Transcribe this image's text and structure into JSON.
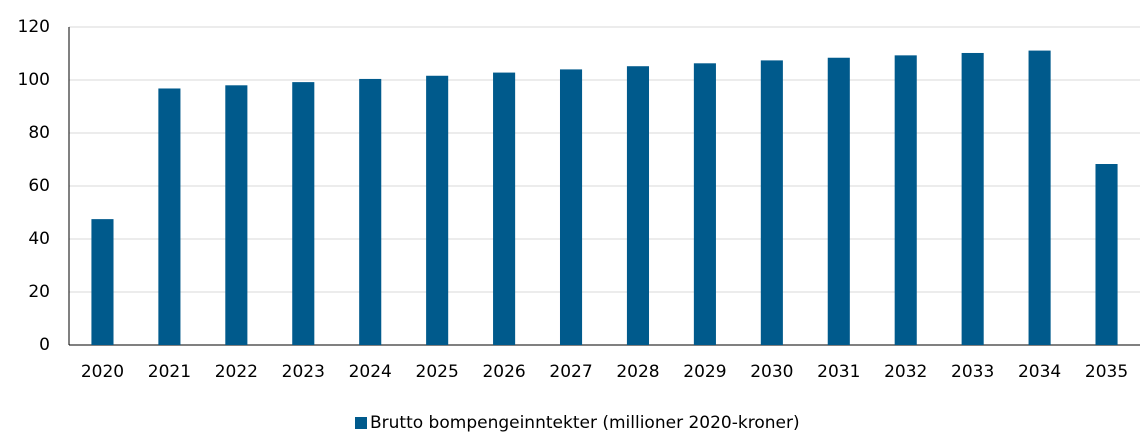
{
  "chart_data": {
    "type": "bar",
    "categories": [
      "2020",
      "2021",
      "2022",
      "2023",
      "2024",
      "2025",
      "2026",
      "2027",
      "2028",
      "2029",
      "2030",
      "2031",
      "2032",
      "2033",
      "2034",
      "2035"
    ],
    "series": [
      {
        "name": "Brutto bompengeinntekter (millioner 2020-kroner)",
        "color": "#005a8c",
        "values": [
          47.5,
          96.8,
          98,
          99.2,
          100.4,
          101.6,
          102.8,
          104,
          105.2,
          106.3,
          107.4,
          108.4,
          109.3,
          110.2,
          111.1,
          68.3
        ]
      }
    ],
    "ylim": [
      0,
      120
    ],
    "yticks": [
      0,
      20,
      40,
      60,
      80,
      100,
      120
    ],
    "grid": true,
    "legend": "bottom"
  }
}
